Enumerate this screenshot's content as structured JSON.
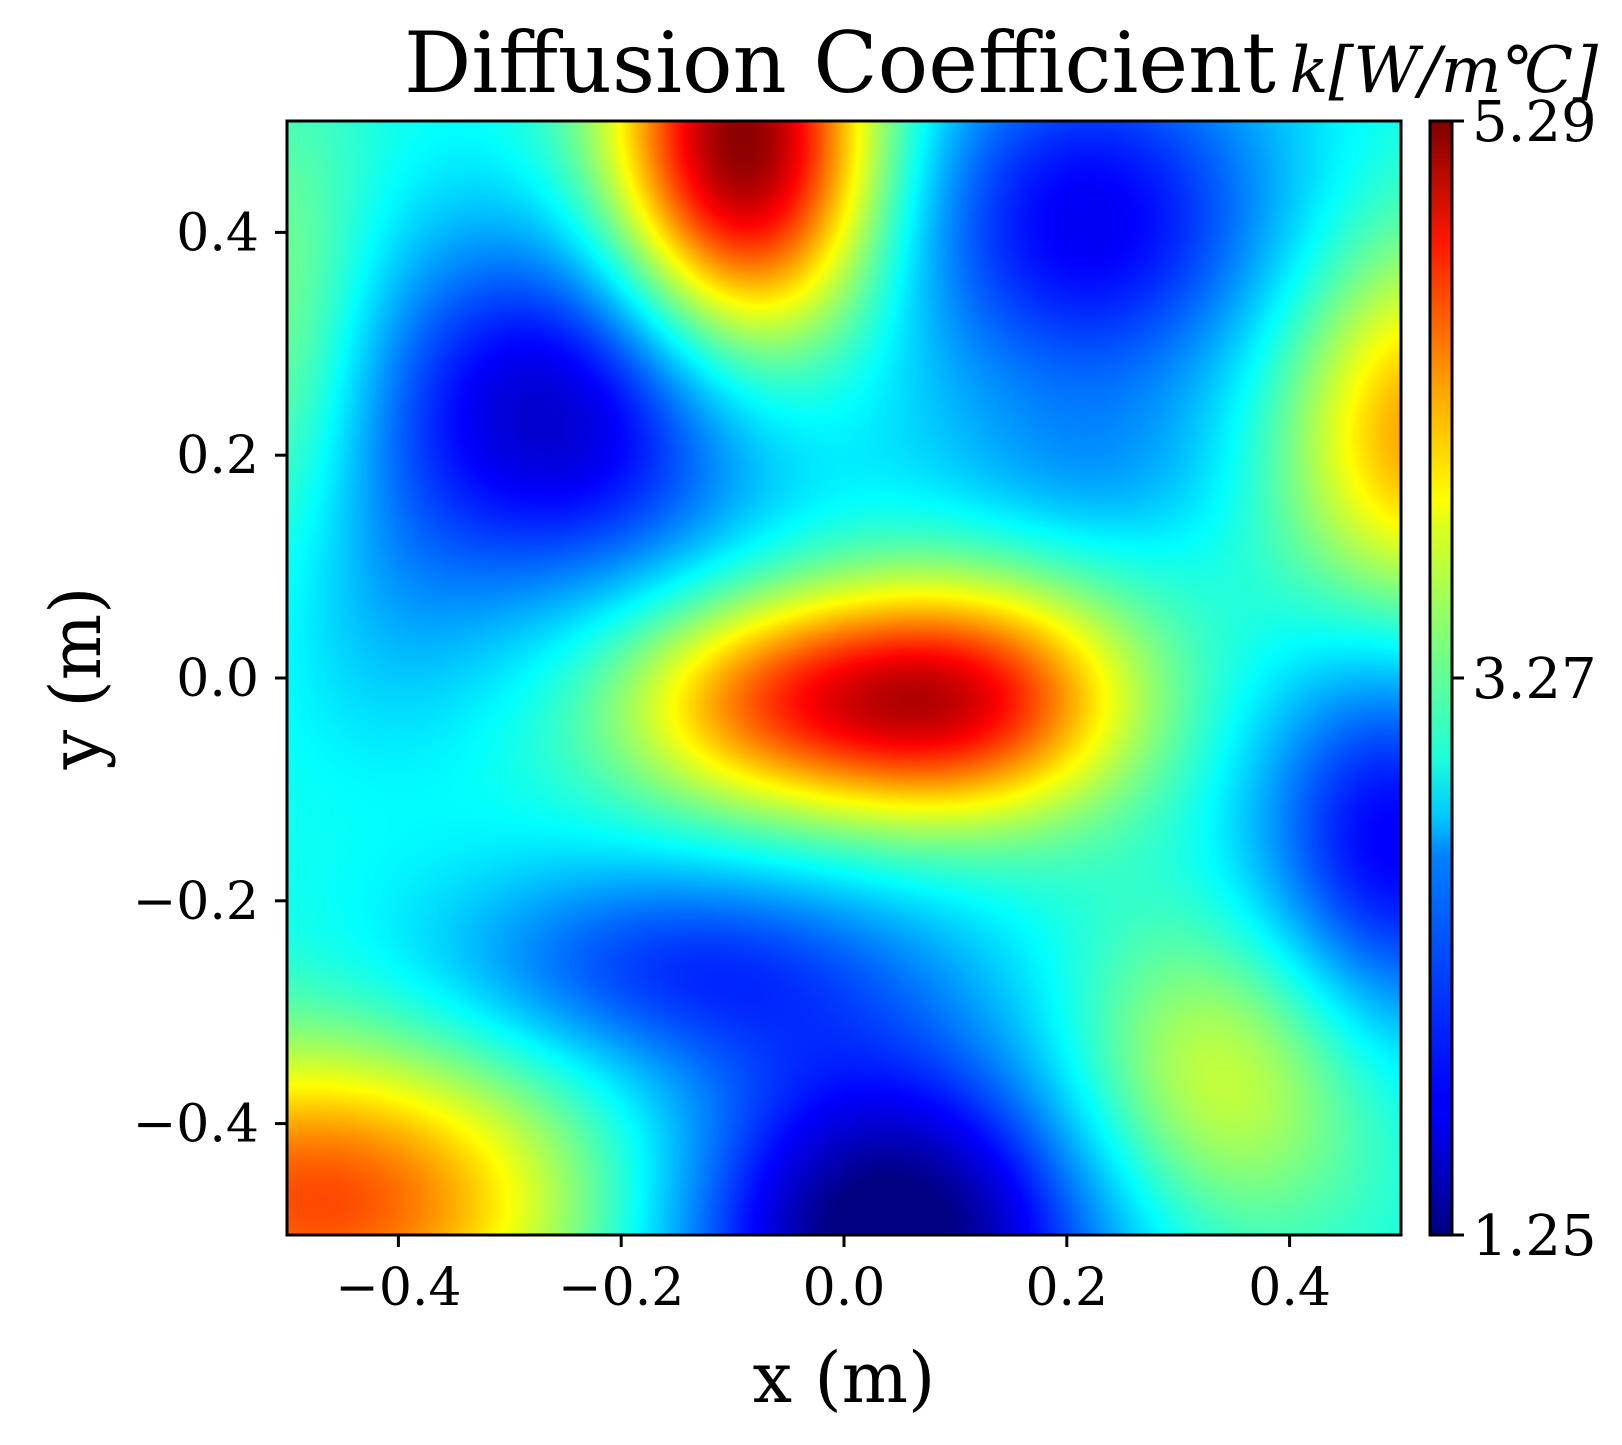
{
  "chart_data": {
    "type": "heatmap",
    "title": "Diffusion Coefficient",
    "xlabel": "x (m)",
    "ylabel": "y (m)",
    "xlim": [
      -0.5,
      0.5
    ],
    "ylim": [
      -0.5,
      0.5
    ],
    "x_ticks": [
      "−0.4",
      "−0.2",
      "0.0",
      "0.2",
      "0.4"
    ],
    "y_ticks": [
      "−0.4",
      "−0.2",
      "0.0",
      "0.2",
      "0.4"
    ],
    "x_tick_values": [
      -0.4,
      -0.2,
      0.0,
      0.2,
      0.4
    ],
    "y_tick_values": [
      -0.4,
      -0.2,
      0.0,
      0.2,
      0.4
    ],
    "colorbar": {
      "label": "k[W/m℃]",
      "colormap": "jet",
      "range": [
        1.25,
        5.29
      ],
      "tick_values": [
        1.25,
        3.27,
        5.29
      ],
      "ticks": [
        "1.25",
        "3.27",
        "5.29"
      ]
    },
    "grid": false,
    "features": [
      {
        "kind": "max",
        "x": -0.09,
        "y": 0.47,
        "value": 5.29
      },
      {
        "kind": "high",
        "x": 0.1,
        "y": -0.02,
        "value": 4.7
      },
      {
        "kind": "high",
        "x": -0.45,
        "y": -0.45,
        "value": 4.3
      },
      {
        "kind": "high",
        "x": 0.5,
        "y": 0.22,
        "value": 4.0
      },
      {
        "kind": "high",
        "x": 0.34,
        "y": -0.36,
        "value": 3.6
      },
      {
        "kind": "min",
        "x": 0.04,
        "y": -0.49,
        "value": 1.25
      },
      {
        "kind": "low",
        "x": -0.25,
        "y": 0.24,
        "value": 1.6
      },
      {
        "kind": "low",
        "x": 0.22,
        "y": 0.41,
        "value": 1.8
      },
      {
        "kind": "low",
        "x": 0.49,
        "y": -0.15,
        "value": 1.8
      },
      {
        "kind": "low",
        "x": -0.15,
        "y": -0.25,
        "value": 2.0
      }
    ]
  }
}
